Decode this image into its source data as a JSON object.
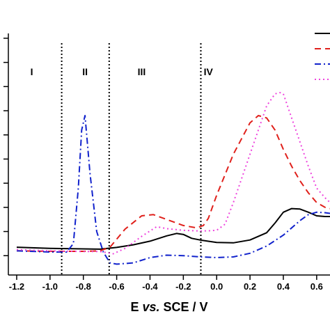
{
  "chart_data": {
    "type": "line",
    "xlabel_parts": [
      "E ",
      "vs.",
      " SCE / V"
    ],
    "xlim": [
      -1.25,
      0.68
    ],
    "ylim": [
      0,
      10
    ],
    "x_ticks": [
      -1.2,
      -1.0,
      -0.8,
      -0.6,
      -0.4,
      -0.2,
      0.0,
      0.2,
      0.4,
      0.6
    ],
    "x_tick_labels": [
      "-1.2",
      "-1.0",
      "-0.8",
      "-0.6",
      "-0.4",
      "-0.2",
      "0.0",
      "0.2",
      "0.4",
      "0.6"
    ],
    "y_ticks": [
      0.8,
      1.8,
      2.8,
      3.8,
      4.8,
      5.8,
      6.8,
      7.8,
      8.8,
      9.8
    ],
    "region_boundaries": [
      -0.93,
      -0.645,
      -0.095
    ],
    "regions": [
      {
        "label": "I",
        "x": -1.11
      },
      {
        "label": "II",
        "x": -0.79
      },
      {
        "label": "III",
        "x": -0.45
      },
      {
        "label": "IV",
        "x": -0.05
      }
    ],
    "series": [
      {
        "color": "#000000",
        "dash": "solid",
        "x": [
          -1.2,
          -1.0,
          -0.8,
          -0.7,
          -0.6,
          -0.5,
          -0.4,
          -0.3,
          -0.24,
          -0.2,
          -0.15,
          -0.1,
          0.0,
          0.1,
          0.2,
          0.3,
          0.35,
          0.4,
          0.45,
          0.5,
          0.55,
          0.6,
          0.65,
          0.68
        ],
        "y": [
          1.15,
          1.1,
          1.08,
          1.07,
          1.14,
          1.25,
          1.4,
          1.62,
          1.72,
          1.68,
          1.52,
          1.45,
          1.35,
          1.33,
          1.45,
          1.75,
          2.15,
          2.6,
          2.75,
          2.73,
          2.6,
          2.45,
          2.42,
          2.42
        ]
      },
      {
        "color": "#e0201b",
        "dash": "dash",
        "x": [
          -1.2,
          -1.0,
          -0.8,
          -0.7,
          -0.64,
          -0.55,
          -0.45,
          -0.38,
          -0.3,
          -0.2,
          -0.12,
          -0.08,
          -0.05,
          0.0,
          0.1,
          0.2,
          0.25,
          0.3,
          0.35,
          0.4,
          0.45,
          0.5,
          0.55,
          0.6,
          0.65,
          0.68
        ],
        "y": [
          1.0,
          0.98,
          0.98,
          1.0,
          1.15,
          1.9,
          2.45,
          2.5,
          2.3,
          2.05,
          1.95,
          2.05,
          2.35,
          3.3,
          5.0,
          6.3,
          6.6,
          6.5,
          6.0,
          5.2,
          4.5,
          3.9,
          3.4,
          3.0,
          2.8,
          2.75
        ]
      },
      {
        "color": "#1122cc",
        "dash": "dashdot",
        "x": [
          -1.2,
          -1.0,
          -0.9,
          -0.86,
          -0.83,
          -0.81,
          -0.79,
          -0.76,
          -0.72,
          -0.68,
          -0.64,
          -0.6,
          -0.5,
          -0.4,
          -0.3,
          -0.2,
          -0.1,
          0.0,
          0.1,
          0.2,
          0.3,
          0.4,
          0.5,
          0.55,
          0.6,
          0.65,
          0.68
        ],
        "y": [
          1.0,
          0.95,
          0.95,
          1.3,
          3.6,
          6.0,
          6.6,
          4.2,
          1.8,
          0.95,
          0.5,
          0.45,
          0.5,
          0.72,
          0.82,
          0.8,
          0.75,
          0.72,
          0.75,
          0.9,
          1.2,
          1.65,
          2.25,
          2.5,
          2.6,
          2.58,
          2.55
        ]
      },
      {
        "color": "#ee44dd",
        "dash": "dot",
        "x": [
          -1.2,
          -1.0,
          -0.8,
          -0.7,
          -0.62,
          -0.55,
          -0.45,
          -0.36,
          -0.3,
          -0.2,
          -0.1,
          -0.05,
          0.0,
          0.05,
          0.1,
          0.2,
          0.3,
          0.35,
          0.38,
          0.4,
          0.45,
          0.5,
          0.55,
          0.6,
          0.65,
          0.68
        ],
        "y": [
          1.05,
          1.0,
          0.97,
          0.97,
          0.88,
          1.1,
          1.6,
          2.0,
          1.92,
          1.85,
          1.82,
          1.83,
          1.85,
          2.1,
          3.0,
          5.0,
          7.0,
          7.5,
          7.55,
          7.5,
          6.5,
          5.5,
          4.5,
          3.6,
          3.2,
          3.0
        ]
      }
    ],
    "legend": {
      "placement": "top-right"
    }
  }
}
